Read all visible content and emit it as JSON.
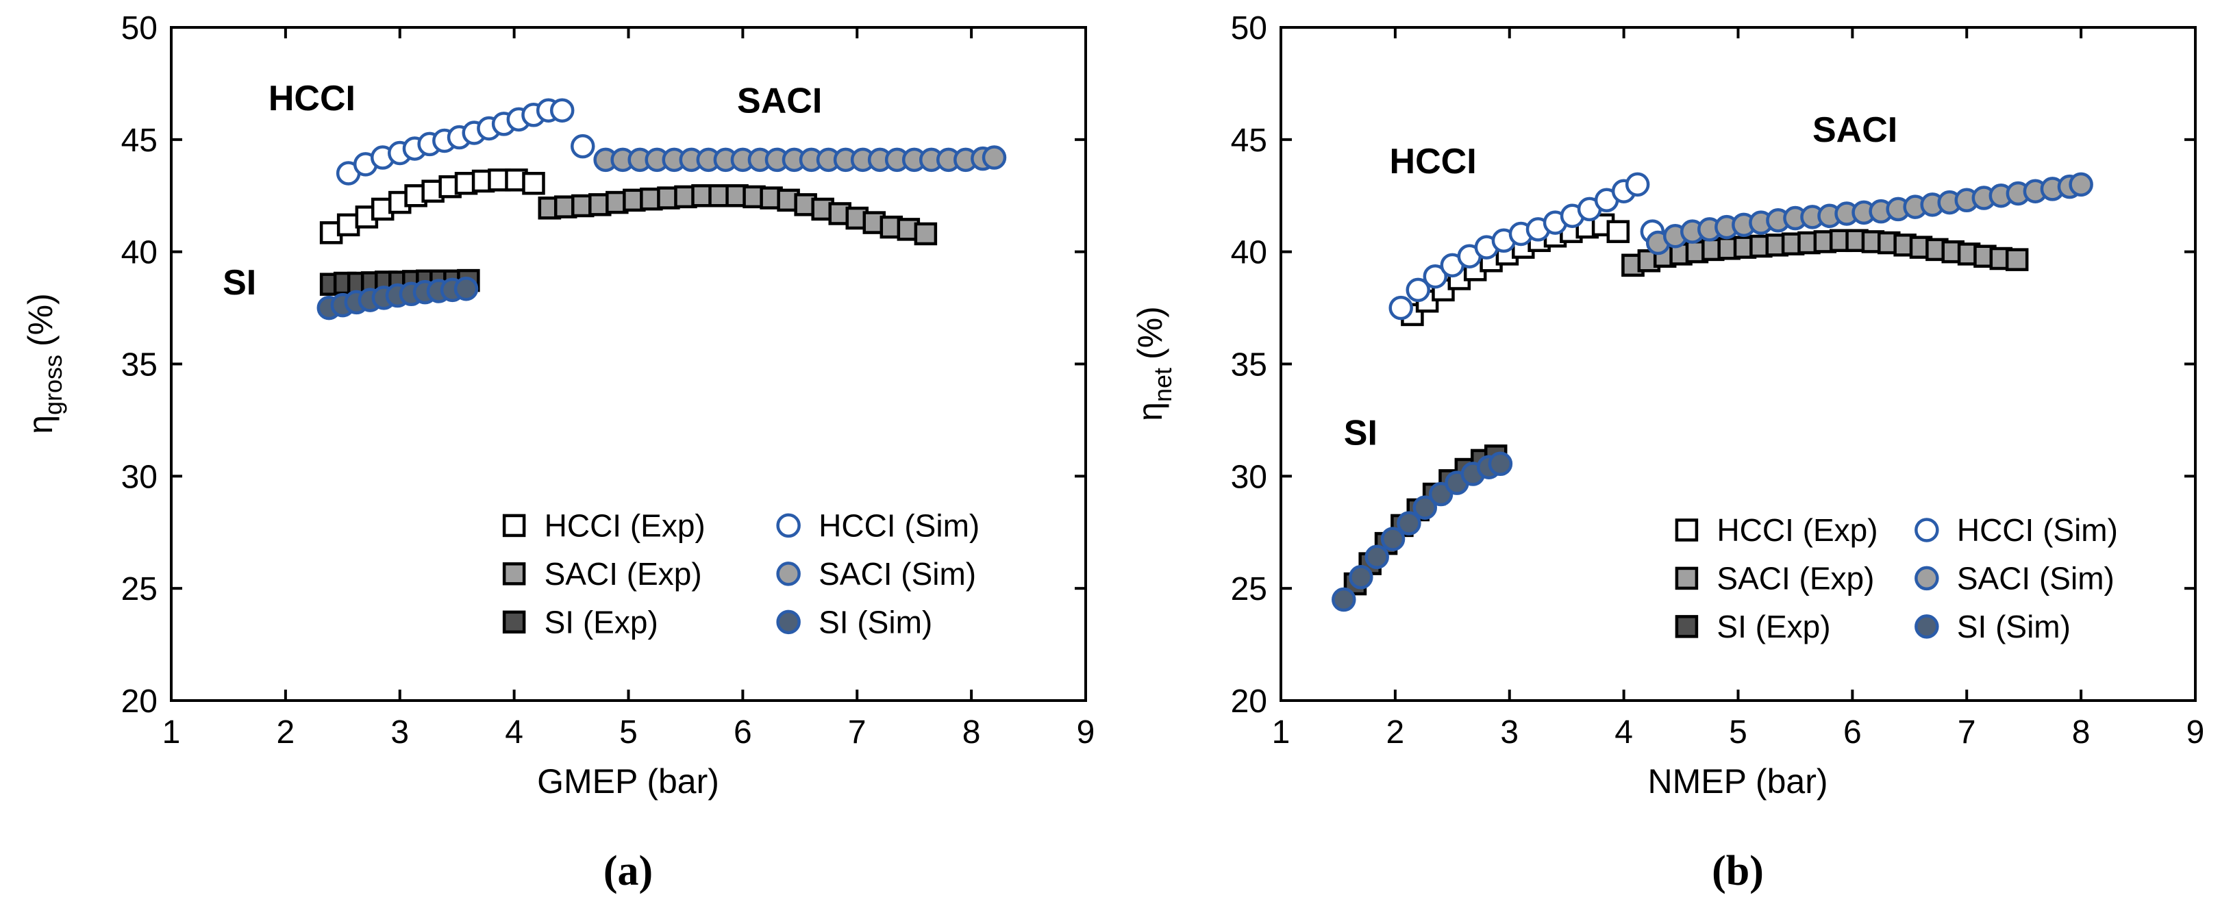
{
  "page": {
    "background": "#ffffff"
  },
  "colors": {
    "axis": "#000000",
    "blue_edge": "#2a5caa",
    "gray_fill": "#a0a0a0",
    "dark_gray_fill": "#4f4f4f",
    "slate_blue_fill": "#4d6078",
    "white_fill": "#ffffff"
  },
  "chart_data": [
    {
      "id": "a",
      "type": "scatter",
      "caption": "(a)",
      "xlabel": "GMEP (bar)",
      "ylabel": {
        "main": "η",
        "sub": "gross",
        "rest": "(%)"
      },
      "xlim": [
        1,
        9
      ],
      "ylim": [
        20,
        50
      ],
      "xticks": [
        1,
        2,
        3,
        4,
        5,
        6,
        7,
        8,
        9
      ],
      "yticks": [
        20,
        25,
        30,
        35,
        40,
        45,
        50
      ],
      "grid": false,
      "legend_position": "inside-lower-right",
      "annotations": [
        {
          "text": "HCCI",
          "x": 1.85,
          "y": 46.3
        },
        {
          "text": "SACI",
          "x": 5.95,
          "y": 46.2
        },
        {
          "text": "SI",
          "x": 1.45,
          "y": 38.1
        }
      ],
      "legend": {
        "x": 4.0,
        "y": 27.8,
        "row_dy": 2.15,
        "col_dx": 2.4,
        "columns": [
          [
            0,
            1,
            2
          ],
          [
            3,
            4,
            5
          ]
        ]
      },
      "series": [
        {
          "name": "HCCI (Exp)",
          "marker": "square",
          "fill": "#ffffff",
          "edge": "#000000",
          "points": [
            [
              2.4,
              40.85
            ],
            [
              2.55,
              41.2
            ],
            [
              2.71,
              41.55
            ],
            [
              2.85,
              41.9
            ],
            [
              3.0,
              42.2
            ],
            [
              3.14,
              42.5
            ],
            [
              3.29,
              42.7
            ],
            [
              3.44,
              42.9
            ],
            [
              3.58,
              43.05
            ],
            [
              3.73,
              43.15
            ],
            [
              3.87,
              43.2
            ],
            [
              4.02,
              43.2
            ],
            [
              4.17,
              43.05
            ],
            [
              4.31,
              41.95
            ]
          ]
        },
        {
          "name": "SACI (Exp)",
          "marker": "square",
          "fill": "#a0a0a0",
          "edge": "#000000",
          "points": [
            [
              4.31,
              41.95
            ],
            [
              4.45,
              42.0
            ],
            [
              4.6,
              42.05
            ],
            [
              4.75,
              42.1
            ],
            [
              4.9,
              42.2
            ],
            [
              5.05,
              42.3
            ],
            [
              5.2,
              42.35
            ],
            [
              5.35,
              42.4
            ],
            [
              5.5,
              42.45
            ],
            [
              5.65,
              42.5
            ],
            [
              5.8,
              42.5
            ],
            [
              5.95,
              42.5
            ],
            [
              6.1,
              42.45
            ],
            [
              6.25,
              42.4
            ],
            [
              6.4,
              42.3
            ],
            [
              6.55,
              42.1
            ],
            [
              6.7,
              41.9
            ],
            [
              6.85,
              41.7
            ],
            [
              7.0,
              41.5
            ],
            [
              7.15,
              41.3
            ],
            [
              7.3,
              41.1
            ],
            [
              7.45,
              41.0
            ],
            [
              7.6,
              40.8
            ]
          ]
        },
        {
          "name": "SI (Exp)",
          "marker": "square",
          "fill": "#4f4f4f",
          "edge": "#000000",
          "points": [
            [
              2.4,
              38.55
            ],
            [
              2.52,
              38.6
            ],
            [
              2.64,
              38.6
            ],
            [
              2.76,
              38.62
            ],
            [
              2.88,
              38.65
            ],
            [
              3.0,
              38.65
            ],
            [
              3.12,
              38.68
            ],
            [
              3.24,
              38.7
            ],
            [
              3.36,
              38.7
            ],
            [
              3.48,
              38.7
            ],
            [
              3.6,
              38.72
            ]
          ]
        },
        {
          "name": "HCCI (Sim)",
          "marker": "circle",
          "fill": "#ffffff",
          "edge": "#2a5caa",
          "points": [
            [
              2.55,
              43.5
            ],
            [
              2.7,
              43.9
            ],
            [
              2.85,
              44.2
            ],
            [
              3.0,
              44.4
            ],
            [
              3.13,
              44.6
            ],
            [
              3.26,
              44.8
            ],
            [
              3.39,
              44.95
            ],
            [
              3.52,
              45.1
            ],
            [
              3.65,
              45.3
            ],
            [
              3.78,
              45.5
            ],
            [
              3.91,
              45.7
            ],
            [
              4.04,
              45.9
            ],
            [
              4.17,
              46.1
            ],
            [
              4.3,
              46.3
            ],
            [
              4.42,
              46.3
            ],
            [
              4.6,
              44.7
            ]
          ]
        },
        {
          "name": "SACI (Sim)",
          "marker": "circle",
          "fill": "#a0a0a0",
          "edge": "#2a5caa",
          "points": [
            [
              4.8,
              44.1
            ],
            [
              4.95,
              44.1
            ],
            [
              5.1,
              44.1
            ],
            [
              5.25,
              44.1
            ],
            [
              5.4,
              44.1
            ],
            [
              5.55,
              44.1
            ],
            [
              5.7,
              44.1
            ],
            [
              5.85,
              44.1
            ],
            [
              6.0,
              44.1
            ],
            [
              6.15,
              44.1
            ],
            [
              6.3,
              44.1
            ],
            [
              6.45,
              44.1
            ],
            [
              6.6,
              44.1
            ],
            [
              6.75,
              44.1
            ],
            [
              6.9,
              44.1
            ],
            [
              7.05,
              44.1
            ],
            [
              7.2,
              44.1
            ],
            [
              7.35,
              44.1
            ],
            [
              7.5,
              44.1
            ],
            [
              7.65,
              44.1
            ],
            [
              7.8,
              44.1
            ],
            [
              7.95,
              44.1
            ],
            [
              8.1,
              44.15
            ],
            [
              8.2,
              44.2
            ]
          ]
        },
        {
          "name": "SI (Sim)",
          "marker": "circle",
          "fill": "#4d6078",
          "edge": "#2a5caa",
          "points": [
            [
              2.38,
              37.5
            ],
            [
              2.5,
              37.62
            ],
            [
              2.62,
              37.75
            ],
            [
              2.74,
              37.85
            ],
            [
              2.86,
              37.95
            ],
            [
              2.98,
              38.05
            ],
            [
              3.1,
              38.12
            ],
            [
              3.22,
              38.2
            ],
            [
              3.34,
              38.25
            ],
            [
              3.46,
              38.3
            ],
            [
              3.58,
              38.35
            ]
          ]
        }
      ]
    },
    {
      "id": "b",
      "type": "scatter",
      "caption": "(b)",
      "xlabel": "NMEP (bar)",
      "ylabel": {
        "main": "η",
        "sub": "net",
        "rest": "(%)"
      },
      "xlim": [
        1,
        9
      ],
      "ylim": [
        20,
        50
      ],
      "xticks": [
        1,
        2,
        3,
        4,
        5,
        6,
        7,
        8,
        9
      ],
      "yticks": [
        20,
        25,
        30,
        35,
        40,
        45,
        50
      ],
      "grid": false,
      "legend_position": "inside-lower-right",
      "annotations": [
        {
          "text": "HCCI",
          "x": 1.95,
          "y": 43.5
        },
        {
          "text": "SACI",
          "x": 5.65,
          "y": 44.9
        },
        {
          "text": "SI",
          "x": 1.55,
          "y": 31.4
        }
      ],
      "legend": {
        "x": 4.55,
        "y": 27.6,
        "row_dy": 2.15,
        "col_dx": 2.1,
        "columns": [
          [
            0,
            1,
            2
          ],
          [
            3,
            4,
            5
          ]
        ]
      },
      "series": [
        {
          "name": "HCCI (Exp)",
          "marker": "square",
          "fill": "#ffffff",
          "edge": "#000000",
          "points": [
            [
              2.15,
              37.2
            ],
            [
              2.28,
              37.8
            ],
            [
              2.42,
              38.3
            ],
            [
              2.56,
              38.8
            ],
            [
              2.7,
              39.2
            ],
            [
              2.84,
              39.6
            ],
            [
              2.98,
              39.9
            ],
            [
              3.12,
              40.2
            ],
            [
              3.26,
              40.5
            ],
            [
              3.4,
              40.7
            ],
            [
              3.54,
              40.9
            ],
            [
              3.68,
              41.1
            ],
            [
              3.82,
              41.2
            ],
            [
              3.95,
              40.9
            ],
            [
              4.08,
              39.4
            ]
          ]
        },
        {
          "name": "SACI (Exp)",
          "marker": "square",
          "fill": "#a0a0a0",
          "edge": "#000000",
          "points": [
            [
              4.08,
              39.4
            ],
            [
              4.22,
              39.6
            ],
            [
              4.36,
              39.8
            ],
            [
              4.5,
              39.9
            ],
            [
              4.64,
              40.0
            ],
            [
              4.78,
              40.1
            ],
            [
              4.92,
              40.15
            ],
            [
              5.06,
              40.2
            ],
            [
              5.2,
              40.25
            ],
            [
              5.34,
              40.3
            ],
            [
              5.48,
              40.35
            ],
            [
              5.62,
              40.4
            ],
            [
              5.76,
              40.45
            ],
            [
              5.9,
              40.5
            ],
            [
              6.04,
              40.5
            ],
            [
              6.18,
              40.45
            ],
            [
              6.32,
              40.4
            ],
            [
              6.46,
              40.3
            ],
            [
              6.6,
              40.2
            ],
            [
              6.74,
              40.1
            ],
            [
              6.88,
              40.0
            ],
            [
              7.02,
              39.9
            ],
            [
              7.16,
              39.8
            ],
            [
              7.3,
              39.7
            ],
            [
              7.44,
              39.65
            ]
          ]
        },
        {
          "name": "SI (Exp)",
          "marker": "square",
          "fill": "#4f4f4f",
          "edge": "#000000",
          "points": [
            [
              1.65,
              25.2
            ],
            [
              1.78,
              26.1
            ],
            [
              1.92,
              27.0
            ],
            [
              2.06,
              27.8
            ],
            [
              2.2,
              28.5
            ],
            [
              2.34,
              29.2
            ],
            [
              2.48,
              29.8
            ],
            [
              2.62,
              30.3
            ],
            [
              2.76,
              30.7
            ],
            [
              2.88,
              30.9
            ]
          ]
        },
        {
          "name": "HCCI (Sim)",
          "marker": "circle",
          "fill": "#ffffff",
          "edge": "#2a5caa",
          "points": [
            [
              2.05,
              37.5
            ],
            [
              2.2,
              38.3
            ],
            [
              2.35,
              38.9
            ],
            [
              2.5,
              39.4
            ],
            [
              2.65,
              39.8
            ],
            [
              2.8,
              40.2
            ],
            [
              2.95,
              40.5
            ],
            [
              3.1,
              40.8
            ],
            [
              3.25,
              41.0
            ],
            [
              3.4,
              41.3
            ],
            [
              3.55,
              41.6
            ],
            [
              3.7,
              41.9
            ],
            [
              3.85,
              42.3
            ],
            [
              4.0,
              42.7
            ],
            [
              4.12,
              43.0
            ],
            [
              4.25,
              40.9
            ]
          ]
        },
        {
          "name": "SACI (Sim)",
          "marker": "circle",
          "fill": "#a0a0a0",
          "edge": "#2a5caa",
          "points": [
            [
              4.3,
              40.4
            ],
            [
              4.45,
              40.7
            ],
            [
              4.6,
              40.9
            ],
            [
              4.75,
              41.0
            ],
            [
              4.9,
              41.1
            ],
            [
              5.05,
              41.2
            ],
            [
              5.2,
              41.3
            ],
            [
              5.35,
              41.4
            ],
            [
              5.5,
              41.5
            ],
            [
              5.65,
              41.55
            ],
            [
              5.8,
              41.6
            ],
            [
              5.95,
              41.7
            ],
            [
              6.1,
              41.75
            ],
            [
              6.25,
              41.8
            ],
            [
              6.4,
              41.9
            ],
            [
              6.55,
              42.0
            ],
            [
              6.7,
              42.1
            ],
            [
              6.85,
              42.2
            ],
            [
              7.0,
              42.3
            ],
            [
              7.15,
              42.4
            ],
            [
              7.3,
              42.5
            ],
            [
              7.45,
              42.6
            ],
            [
              7.6,
              42.7
            ],
            [
              7.75,
              42.8
            ],
            [
              7.9,
              42.9
            ],
            [
              8.0,
              43.0
            ]
          ]
        },
        {
          "name": "SI (Sim)",
          "marker": "circle",
          "fill": "#4d6078",
          "edge": "#2a5caa",
          "points": [
            [
              1.55,
              24.5
            ],
            [
              1.7,
              25.5
            ],
            [
              1.84,
              26.4
            ],
            [
              1.98,
              27.2
            ],
            [
              2.12,
              27.9
            ],
            [
              2.26,
              28.6
            ],
            [
              2.4,
              29.2
            ],
            [
              2.54,
              29.7
            ],
            [
              2.68,
              30.1
            ],
            [
              2.82,
              30.4
            ],
            [
              2.92,
              30.55
            ]
          ]
        }
      ]
    }
  ]
}
